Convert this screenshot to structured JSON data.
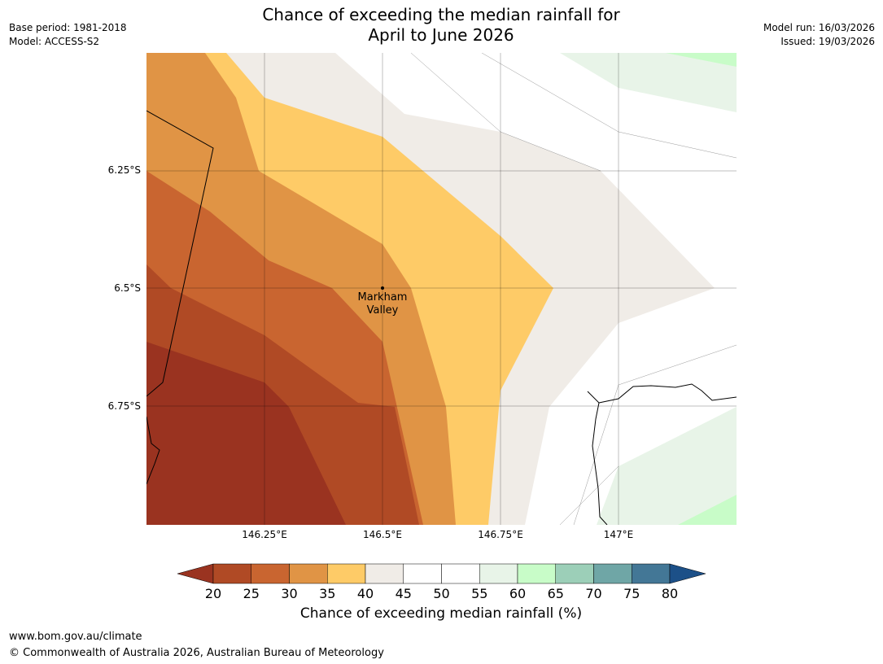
{
  "title_line1": "Chance of exceeding the median rainfall for",
  "title_line2": "April to June 2026",
  "meta_left": {
    "base_period": "Base period: 1981-2018",
    "model": "Model: ACCESS-S2"
  },
  "meta_right": {
    "model_run": "Model run: 16/03/2026",
    "issued": "Issued: 19/03/2026"
  },
  "map": {
    "lat_labels": [
      "6.25°S",
      "6.5°S",
      "6.75°S"
    ],
    "lon_labels": [
      "146.25°E",
      "146.5°E",
      "146.75°E",
      "147°E"
    ],
    "place_name_line1": "Markham",
    "place_name_line2": "Valley"
  },
  "colorbar": {
    "ticks": [
      "20",
      "25",
      "30",
      "35",
      "40",
      "45",
      "50",
      "55",
      "60",
      "65",
      "70",
      "75",
      "80"
    ],
    "colors": {
      "below20": "#9a3320",
      "b20_25": "#b04a25",
      "b25_30": "#c96530",
      "b30_35": "#e09445",
      "b35_40": "#fecb67",
      "b40_45": "#f0ece7",
      "b45_55": "#ffffff",
      "b55_60": "#e8f4e8",
      "b60_65": "#c8fcc8",
      "b65_70": "#9ccfb8",
      "b70_75": "#6fa6a6",
      "b75_80": "#437796",
      "above80": "#1c5088"
    },
    "label": "Chance of exceeding median rainfall (%)"
  },
  "footer": {
    "website": "www.bom.gov.au/climate",
    "copyright": "© Commonwealth of Australia 2026, Australian Bureau of Meteorology"
  }
}
